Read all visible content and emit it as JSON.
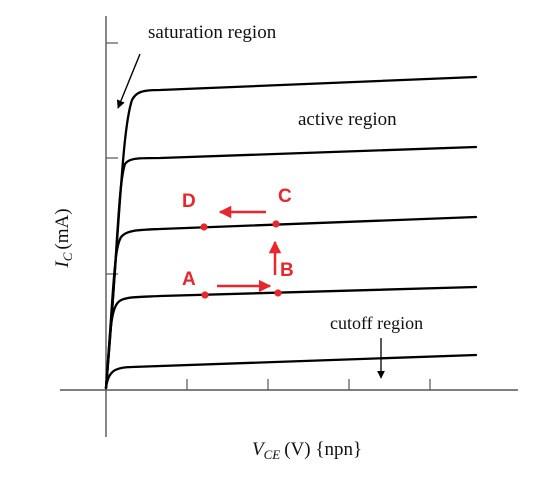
{
  "diagram": {
    "axes": {
      "y_label_main": "I",
      "y_label_sub": "C",
      "y_label_unit": "(mA)",
      "x_label_main": "V",
      "x_label_sub": "CE",
      "x_label_unit": "(V) {npn}"
    },
    "regions": {
      "saturation": "saturation region",
      "active": "active region",
      "cutoff": "cutoff region"
    },
    "points": {
      "A": "A",
      "B": "B",
      "C": "C",
      "D": "D"
    },
    "colors": {
      "curve": "#000000",
      "axis": "#555555",
      "highlight": "#e8262b"
    },
    "curve_count": 5
  }
}
